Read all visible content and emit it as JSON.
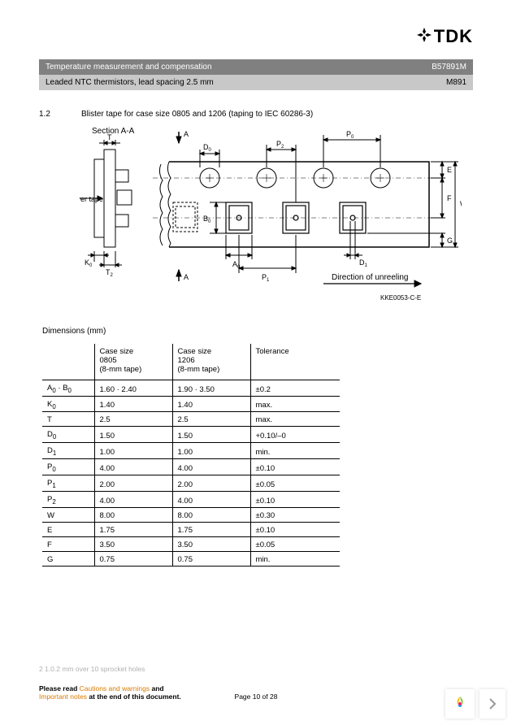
{
  "logo_text": "TDK",
  "header": {
    "left": "Temperature measurement and compensation",
    "right": "B57891M"
  },
  "subheader": {
    "left": "Leaded NTC thermistors, lead spacing 2.5 mm",
    "right": "M891"
  },
  "section": {
    "num": "1.2",
    "title": "Blister tape for case size 0805 and 1206 (taping to IEC 60286-3)"
  },
  "diagram": {
    "section_label": "Section A-A",
    "cover_tape": "Cover tape",
    "direction": "Direction of unreeling",
    "code": "KKE0053-C-E",
    "labels": {
      "T": "T",
      "K0": "K",
      "T2": "T",
      "A_top": "A",
      "A_bot": "A",
      "D0": "D",
      "B0": "B",
      "A0": "A",
      "P1": "P",
      "P2": "P",
      "P0": "P",
      "D1": "D",
      "E": "E",
      "F": "F",
      "W": "W",
      "G": "G"
    },
    "sub": {
      "zero": "0",
      "one": "1",
      "two": "2"
    },
    "stroke": "#000000",
    "bg": "#ffffff"
  },
  "dims_title": "Dimensions (mm)",
  "table": {
    "head": {
      "c1a": "Case size",
      "c1b": "0805",
      "c1c": "(8-mm tape)",
      "c2a": "Case size",
      "c2b": "1206",
      "c2c": "(8-mm tape)",
      "c3": "Tolerance"
    },
    "rows": [
      {
        "p": "A",
        "s0": "0",
        "mid": " · ",
        "p2": "B",
        "s02": "0",
        "c1": "1.60 · 2.40",
        "c2": "1.90 · 3.50",
        "c3": "±0.2"
      },
      {
        "p": "K",
        "s0": "0",
        "c1": "1.40",
        "c2": "1.40",
        "c3": "max."
      },
      {
        "p": "T",
        "s0": "",
        "c1": "2.5",
        "c2": "2.5",
        "c3": "max."
      },
      {
        "p": "D",
        "s0": "0",
        "c1": "1.50",
        "c2": "1.50",
        "c3": "+0.10/–0"
      },
      {
        "p": "D",
        "s0": "1",
        "c1": "1.00",
        "c2": "1.00",
        "c3": "min."
      },
      {
        "p": "P",
        "s0": "0",
        "c1": "4.00",
        "c2": "4.00",
        "c3": "±0.10"
      },
      {
        "p": "P",
        "s0": "1",
        "c1": "2.00",
        "c2": "2.00",
        "c3": "±0.05"
      },
      {
        "p": "P",
        "s0": "2",
        "c1": "4.00",
        "c2": "4.00",
        "c3": "±0.10"
      },
      {
        "p": "W",
        "s0": "",
        "c1": "8.00",
        "c2": "8.00",
        "c3": "±0.30"
      },
      {
        "p": "E",
        "s0": "",
        "c1": "1.75",
        "c2": "1.75",
        "c3": "±0.10"
      },
      {
        "p": "F",
        "s0": "",
        "c1": "3.50",
        "c2": "3.50",
        "c3": "±0.05"
      },
      {
        "p": "G",
        "s0": "",
        "c1": "0.75",
        "c2": "0.75",
        "c3": "min."
      }
    ]
  },
  "footer": {
    "faint1": "2   1.0.2 mm over 10 sprocket holes",
    "bold": "Please read ",
    "faint2": "Cautions and warnings",
    "bold2": " and",
    "line2": "Important notes ",
    "bold3": "at the end of this document."
  },
  "page_num": "Page 10 of 28"
}
